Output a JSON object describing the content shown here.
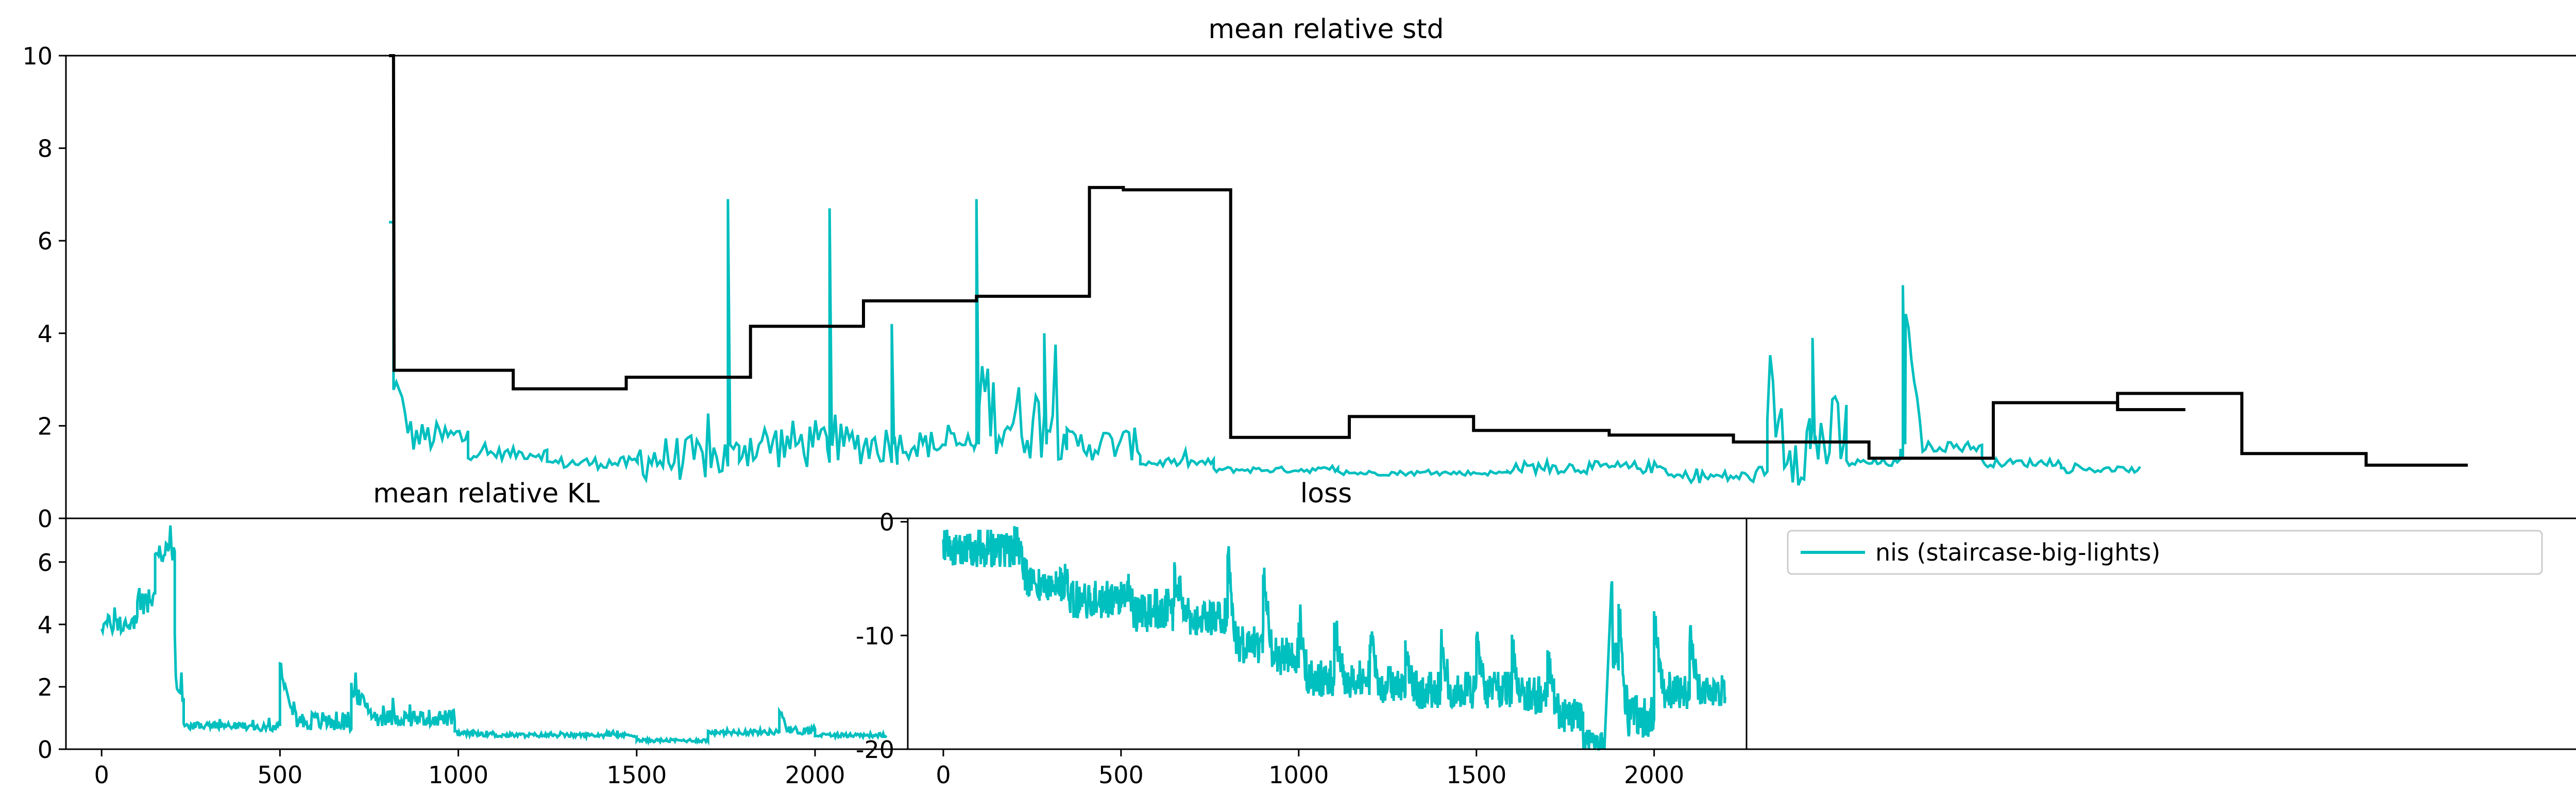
{
  "colors": {
    "series": "#00bfbf",
    "reference": "#000000",
    "axes": "#000000",
    "legend_border": "#cccccc"
  },
  "chart_data": [
    {
      "type": "line",
      "title": "mean relative std",
      "xlabel": "",
      "ylabel": "",
      "ylim": [
        0,
        10
      ],
      "grid": false,
      "yticks": [
        "0",
        "2",
        "4",
        "6",
        "8",
        "10"
      ],
      "series": [
        {
          "kind": "noisy",
          "segments": [
            {
              "x0": 0,
              "x1": 0.004,
              "base": 6.4,
              "peak": 6.4
            },
            {
              "x0": 0.004,
              "x1": 0.07,
              "base": 1.75,
              "start": 3.0,
              "peak": 2.5
            },
            {
              "x0": 0.07,
              "x1": 0.14,
              "base": 1.4,
              "peak": 1.7
            },
            {
              "x0": 0.14,
              "x1": 0.22,
              "base": 1.2,
              "peak": 1.5
            },
            {
              "x0": 0.22,
              "x1": 0.31,
              "base": 1.3,
              "peak": 2.4
            },
            {
              "x0": 0.31,
              "x1": 0.39,
              "base": 1.6,
              "peak": 2.8
            },
            {
              "x0": 0.39,
              "x1": 0.45,
              "base": 1.6,
              "peak": 2.6
            },
            {
              "x0": 0.45,
              "x1": 0.52,
              "base": 1.6,
              "peak": 2.3
            },
            {
              "x0": 0.52,
              "x1": 0.6,
              "base": 2.1,
              "start": 3.2,
              "peak": 4.0
            },
            {
              "x0": 0.6,
              "x1": 0.665,
              "base": 1.6,
              "peak": 2.4
            },
            {
              "x0": 0.665,
              "x1": 0.73,
              "base": 1.2,
              "peak": 1.4
            },
            {
              "x0": 0.73,
              "x1": 0.84,
              "base": 1.05,
              "peak": 1.2
            },
            {
              "x0": 0.84,
              "x1": 0.99,
              "base": 0.98,
              "peak": 1.1
            },
            {
              "x0": 0.99,
              "x1": 1.13,
              "base": 1.1,
              "peak": 1.4
            },
            {
              "x0": 1.13,
              "x1": 1.22,
              "base": 0.9,
              "peak": 1.2
            },
            {
              "x0": 1.22,
              "x1": 1.29,
              "base": 1.7,
              "start": 2.9,
              "peak": 3.9
            },
            {
              "x0": 1.29,
              "x1": 1.34,
              "base": 1.2,
              "peak": 1.4
            },
            {
              "x0": 1.34,
              "x1": 1.41,
              "base": 1.55,
              "start": 5.0,
              "peak": 1.8
            },
            {
              "x0": 1.41,
              "x1": 1.48,
              "base": 1.2,
              "peak": 1.4
            },
            {
              "x0": 1.48,
              "x1": 1.55,
              "base": 1.05,
              "peak": 1.2
            }
          ],
          "spikes": [
            {
              "x": 0.3,
              "y": 6.9
            },
            {
              "x": 0.39,
              "y": 6.7
            },
            {
              "x": 0.445,
              "y": 4.2
            },
            {
              "x": 0.52,
              "y": 6.9
            },
            {
              "x": 0.58,
              "y": 4.0
            },
            {
              "x": 1.26,
              "y": 3.9
            },
            {
              "x": 1.34,
              "y": 5.0
            }
          ]
        },
        {
          "kind": "step",
          "x": [
            0,
            0.004,
            0.0045,
            0.11,
            0.11,
            0.21,
            0.21,
            0.32,
            0.32,
            0.42,
            0.42,
            0.52,
            0.52,
            0.62,
            0.62,
            0.65,
            0.65,
            0.745,
            0.745,
            0.85,
            0.85,
            0.96,
            0.96,
            1.08,
            1.08,
            1.19,
            1.19,
            1.31,
            1.31,
            1.42,
            1.42,
            1.53,
            1.53,
            1.59
          ],
          "y": [
            10,
            10,
            3.2,
            3.2,
            2.8,
            2.8,
            3.05,
            3.05,
            4.15,
            4.15,
            4.7,
            4.7,
            4.8,
            4.8,
            7.15,
            7.15,
            7.1,
            7.1,
            1.75,
            1.75,
            2.2,
            2.2,
            1.9,
            1.9,
            1.8,
            1.8,
            1.65,
            1.65,
            1.3,
            1.3,
            2.5,
            2.5,
            2.35,
            2.35
          ]
        },
        {
          "kind": "step-tail",
          "x": [
            1.53,
            1.53,
            1.64,
            1.64,
            1.75,
            1.75,
            1.84
          ],
          "y": [
            2.35,
            2.7,
            2.7,
            1.4,
            1.4,
            1.15,
            1.15
          ]
        }
      ]
    },
    {
      "type": "line",
      "title": "mean relative KL",
      "xlabel": "",
      "ylabel": "",
      "xlim": [
        -100,
        2260
      ],
      "ylim": [
        0,
        7.4
      ],
      "grid": false,
      "xticks": [
        0,
        500,
        1000,
        1500,
        2000
      ],
      "yticks": [
        0,
        2,
        4,
        6
      ],
      "series": [
        {
          "name": "nis (staircase-big-lights)",
          "segments": [
            {
              "x0": 0,
              "x1": 100,
              "base": 4.0,
              "peak": 4.7
            },
            {
              "x0": 100,
              "x1": 150,
              "base": 4.8,
              "peak": 6.0
            },
            {
              "x0": 150,
              "x1": 205,
              "base": 6.3,
              "peak": 7.0
            },
            {
              "x0": 205,
              "x1": 230,
              "base": 1.6,
              "start": 3.2,
              "peak": 2.4
            },
            {
              "x0": 230,
              "x1": 400,
              "base": 0.75,
              "peak": 1.0
            },
            {
              "x0": 400,
              "x1": 500,
              "base": 0.7,
              "peak": 0.95
            },
            {
              "x0": 500,
              "x1": 700,
              "base": 0.9,
              "start": 2.7,
              "peak": 1.6
            },
            {
              "x0": 700,
              "x1": 990,
              "base": 1.0,
              "start": 1.9,
              "peak": 1.6
            },
            {
              "x0": 990,
              "x1": 1100,
              "base": 0.5,
              "peak": 0.7
            },
            {
              "x0": 1100,
              "x1": 1500,
              "base": 0.45,
              "peak": 0.6
            },
            {
              "x0": 1500,
              "x1": 1700,
              "base": 0.28,
              "peak": 0.4
            },
            {
              "x0": 1700,
              "x1": 1900,
              "base": 0.55,
              "peak": 0.75
            },
            {
              "x0": 1900,
              "x1": 2000,
              "base": 0.6,
              "start": 1.3,
              "peak": 0.9
            },
            {
              "x0": 2000,
              "x1": 2200,
              "base": 0.45,
              "peak": 0.6
            }
          ]
        }
      ]
    },
    {
      "type": "line",
      "title": "loss",
      "xlabel": "",
      "ylabel": "",
      "xlim": [
        -100,
        2260
      ],
      "ylim": [
        -20,
        0.3
      ],
      "grid": false,
      "xticks": [
        0,
        500,
        1000,
        1500,
        2000
      ],
      "yticks": [
        0,
        -10,
        -20
      ],
      "series": [
        {
          "name": "nis (staircase-big-lights)",
          "segments": [
            {
              "x0": 0,
              "x1": 200,
              "base": -2.5,
              "peak": 1.5,
              "noise": 3.0
            },
            {
              "x0": 200,
              "x1": 350,
              "base": -5.5,
              "start": -1,
              "peak": 1.0,
              "noise": 3.0
            },
            {
              "x0": 350,
              "x1": 500,
              "base": -7.0,
              "peak": 1.5,
              "noise": 3.0
            },
            {
              "x0": 500,
              "x1": 650,
              "base": -8.0,
              "start": -5,
              "peak": 1.5,
              "noise": 3.5
            },
            {
              "x0": 650,
              "x1": 800,
              "base": -8.5,
              "start": -5,
              "peak": 1.5,
              "noise": 3.0
            },
            {
              "x0": 800,
              "x1": 900,
              "base": -11,
              "start": -3,
              "peak": 1.5,
              "noise": 3.0
            },
            {
              "x0": 900,
              "x1": 1000,
              "base": -12,
              "start": -5,
              "peak": 1.5,
              "noise": 3.0
            },
            {
              "x0": 1000,
              "x1": 1100,
              "base": -14,
              "start": -8,
              "peak": 1.5,
              "noise": 3.0
            },
            {
              "x0": 1100,
              "x1": 1200,
              "base": -14,
              "start": -9,
              "peak": 1.5,
              "noise": 3.0
            },
            {
              "x0": 1200,
              "x1": 1300,
              "base": -14.5,
              "start": -10,
              "peak": 1.5,
              "noise": 3.0
            },
            {
              "x0": 1300,
              "x1": 1400,
              "base": -15,
              "start": -11,
              "peak": 1.5,
              "noise": 3.0
            },
            {
              "x0": 1400,
              "x1": 1500,
              "base": -15,
              "start": -11,
              "peak": 1.5,
              "noise": 3.0
            },
            {
              "x0": 1500,
              "x1": 1600,
              "base": -15,
              "start": -11,
              "peak": 1.5,
              "noise": 3.0
            },
            {
              "x0": 1600,
              "x1": 1700,
              "base": -15.5,
              "start": -11,
              "peak": 1.5,
              "noise": 3.0
            },
            {
              "x0": 1700,
              "x1": 1800,
              "base": -17,
              "start": -12,
              "peak": 2.0,
              "noise": 3.0
            },
            {
              "x0": 1800,
              "x1": 1860,
              "base": -19.5,
              "peak": 1.0,
              "noise": 2.0
            },
            {
              "x0": 1880,
              "x1": 1900,
              "base": -12,
              "start": -4,
              "peak": 1.0,
              "noise": 3.0
            },
            {
              "x0": 1900,
              "x1": 2000,
              "base": -17,
              "start": -8,
              "peak": 2.0,
              "noise": 4.0
            },
            {
              "x0": 2000,
              "x1": 2100,
              "base": -15,
              "start": -9,
              "peak": 1.5,
              "noise": 3.0
            },
            {
              "x0": 2100,
              "x1": 2200,
              "base": -15,
              "start": -10,
              "peak": 1.5,
              "noise": 2.5
            }
          ]
        }
      ]
    }
  ],
  "legend": {
    "entries": [
      "nis (staircase-big-lights)"
    ]
  }
}
